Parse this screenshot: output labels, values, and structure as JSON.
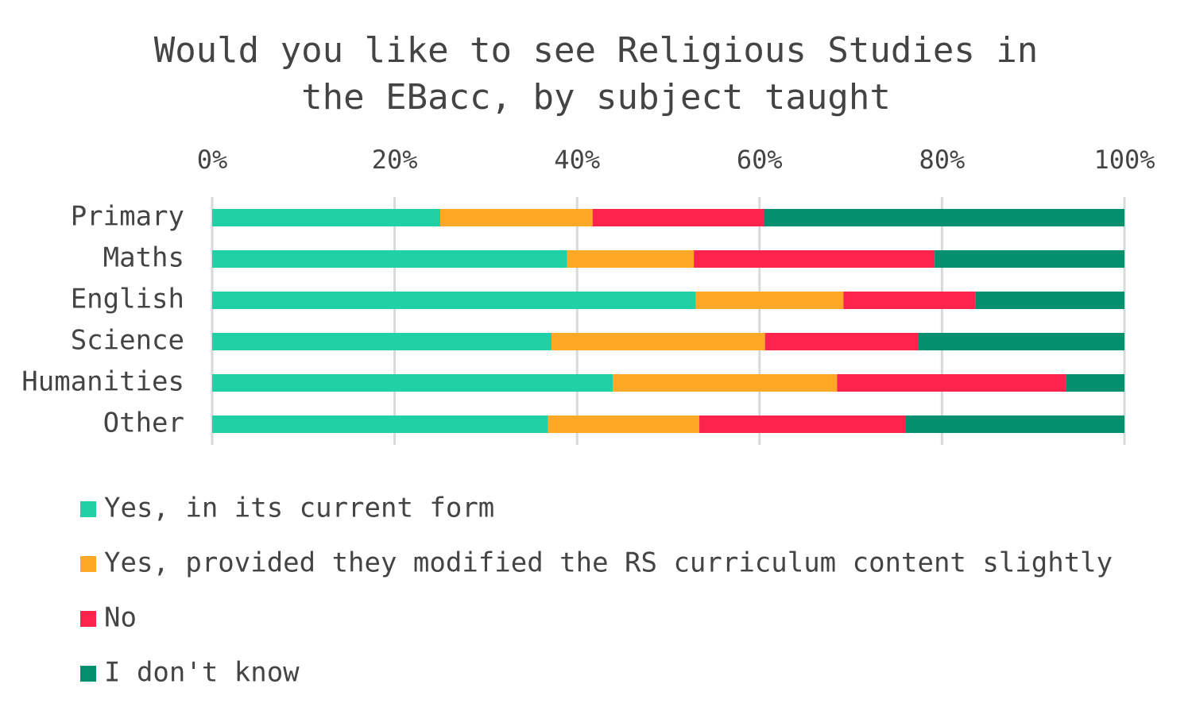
{
  "chart_data": {
    "type": "stacked-barh",
    "title": "Would you like to see Religious Studies in the EBacc, by subject taught",
    "categories": [
      "Primary",
      "Maths",
      "English",
      "Science",
      "Humanities",
      "Other"
    ],
    "series": [
      {
        "name": "Yes, in its current form",
        "color": "#1fd1a5",
        "values": [
          25.0,
          38.9,
          53.0,
          37.2,
          43.9,
          36.8
        ]
      },
      {
        "name": "Yes, provided they modified the RS curriculum content slightly",
        "color": "#fda826",
        "values": [
          16.7,
          13.9,
          16.2,
          23.4,
          24.6,
          16.6
        ]
      },
      {
        "name": "No",
        "color": "#fc234d",
        "values": [
          18.8,
          26.4,
          14.5,
          16.8,
          25.1,
          22.6
        ]
      },
      {
        "name": "I don't know",
        "color": "#048f6e",
        "values": [
          39.5,
          20.8,
          16.3,
          22.6,
          6.4,
          24.0
        ]
      }
    ],
    "xlim": [
      0,
      100
    ],
    "xticks": [
      {
        "value": 0,
        "label": "0%"
      },
      {
        "value": 20,
        "label": "20%"
      },
      {
        "value": 40,
        "label": "40%"
      },
      {
        "value": 60,
        "label": "60%"
      },
      {
        "value": 80,
        "label": "80%"
      },
      {
        "value": 100,
        "label": "100%"
      }
    ],
    "grid": true,
    "legend": "bottom-left"
  }
}
